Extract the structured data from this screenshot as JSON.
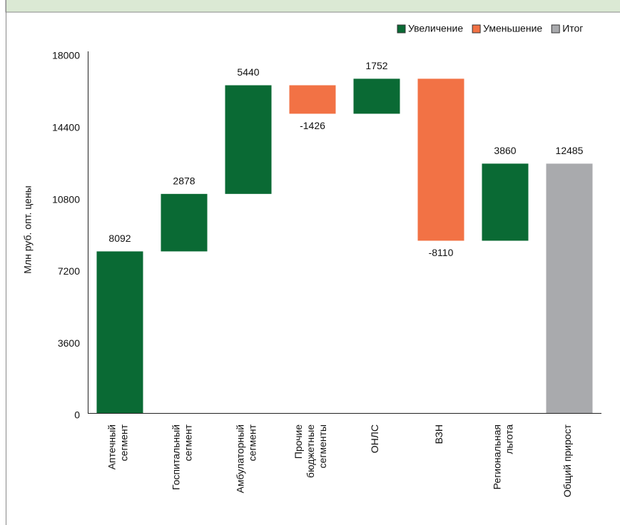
{
  "chart_data": {
    "type": "waterfall",
    "y_label": "Млн руб. опт. цены",
    "categories": [
      [
        "Аптечный",
        "сегмент"
      ],
      [
        "Госпитальный",
        "сегмент"
      ],
      [
        "Амбулаторный",
        "сегмент"
      ],
      [
        "Прочие",
        "бюджетные",
        "сегменты"
      ],
      [
        "ОНЛС"
      ],
      [
        "ВЗН"
      ],
      [
        "Региональная",
        "льгота"
      ],
      [
        "Общий прирост"
      ]
    ],
    "values": [
      8092,
      2878,
      5440,
      -1426,
      1752,
      -8110,
      3860,
      12485
    ],
    "is_total": [
      false,
      false,
      false,
      false,
      false,
      false,
      false,
      true
    ],
    "legend": [
      {
        "name": "Увеличение",
        "color": "#0a6a34"
      },
      {
        "name": "Уменьшение",
        "color": "#f27245"
      },
      {
        "name": "Итог",
        "color": "#a9aaad"
      }
    ],
    "ylim": [
      0,
      18000
    ],
    "yticks": [
      0,
      3600,
      7200,
      10800,
      14400,
      18000
    ],
    "grid": false
  }
}
